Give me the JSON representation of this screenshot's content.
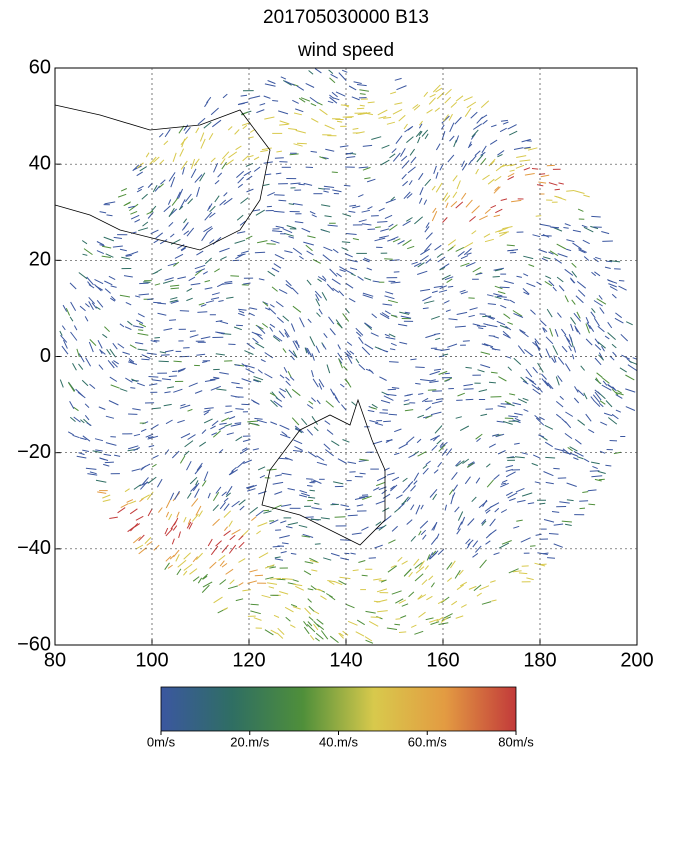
{
  "chart_data": {
    "type": "map",
    "title": "201705030000 B13",
    "subtitle": "wind speed",
    "xlim": [
      80,
      200
    ],
    "ylim": [
      -60,
      60
    ],
    "xticks": [
      80,
      100,
      120,
      140,
      160,
      180,
      200
    ],
    "yticks": [
      {
        "value": -60,
        "label": "−60"
      },
      {
        "value": -40,
        "label": "−40"
      },
      {
        "value": -20,
        "label": "−20"
      },
      0,
      20,
      40,
      60
    ],
    "grid": true,
    "colorbar": {
      "colors": [
        "#3b57a0",
        "#2f6e63",
        "#4f8f3a",
        "#d8c94c",
        "#e39b42",
        "#c23a3a"
      ],
      "ticks": [
        {
          "value": 0,
          "label": "0m/s"
        },
        {
          "value": 20,
          "label": "20.m/s"
        },
        {
          "value": 40,
          "label": "40.m/s"
        },
        {
          "value": 60,
          "label": "60.m/s"
        },
        {
          "value": 80,
          "label": "80m/s"
        }
      ]
    }
  }
}
